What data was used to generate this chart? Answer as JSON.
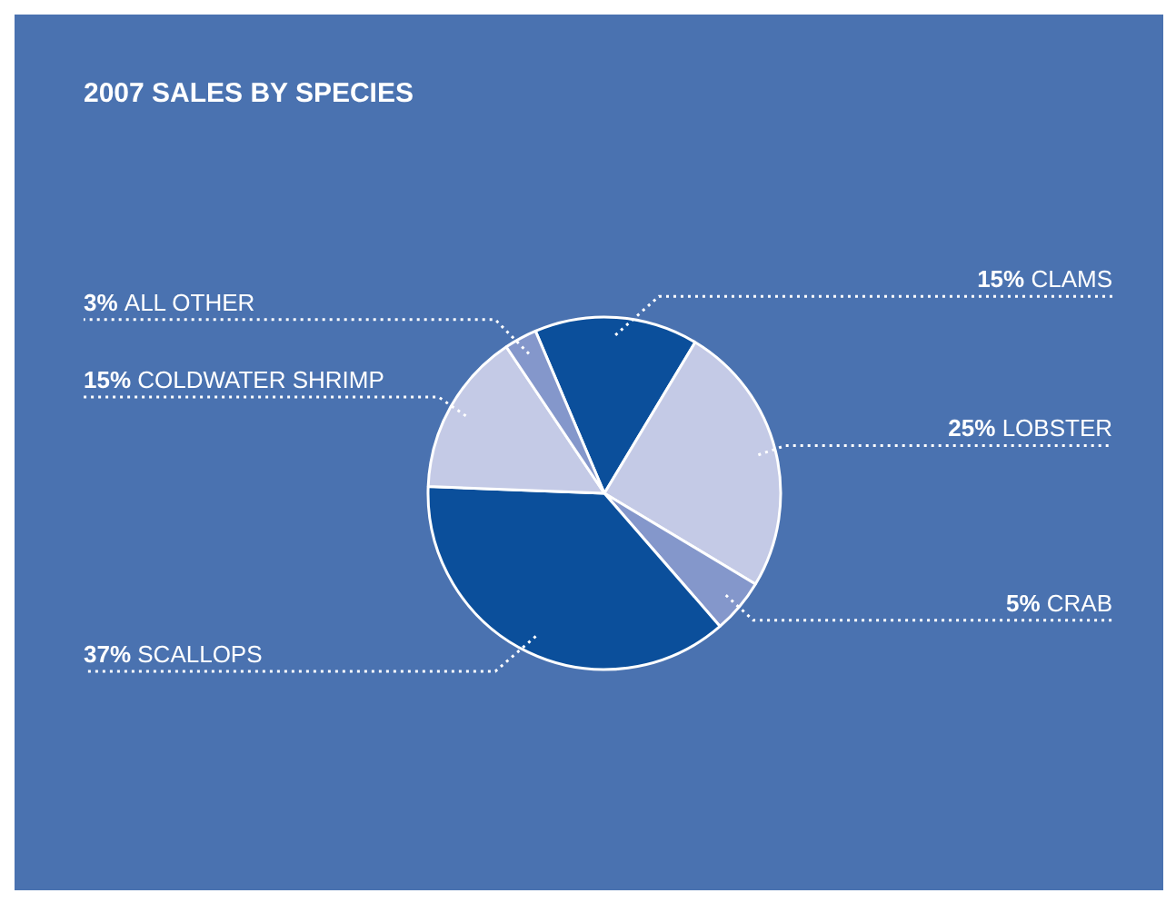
{
  "chart_data": {
    "type": "pie",
    "title": "2007 SALES BY SPECIES",
    "categories": [
      "CLAMS",
      "LOBSTER",
      "CRAB",
      "SCALLOPS",
      "COLDWATER SHRIMP",
      "ALL OTHER"
    ],
    "values": [
      15,
      25,
      5,
      37,
      15,
      3
    ],
    "value_labels": [
      "15%",
      "25%",
      "5%",
      "37%",
      "15%",
      "3%"
    ],
    "colors": [
      "#0b4f9b",
      "#c4cae6",
      "#8497cb",
      "#0b4f9b",
      "#c4cae6",
      "#8497cb"
    ],
    "legend": false
  }
}
